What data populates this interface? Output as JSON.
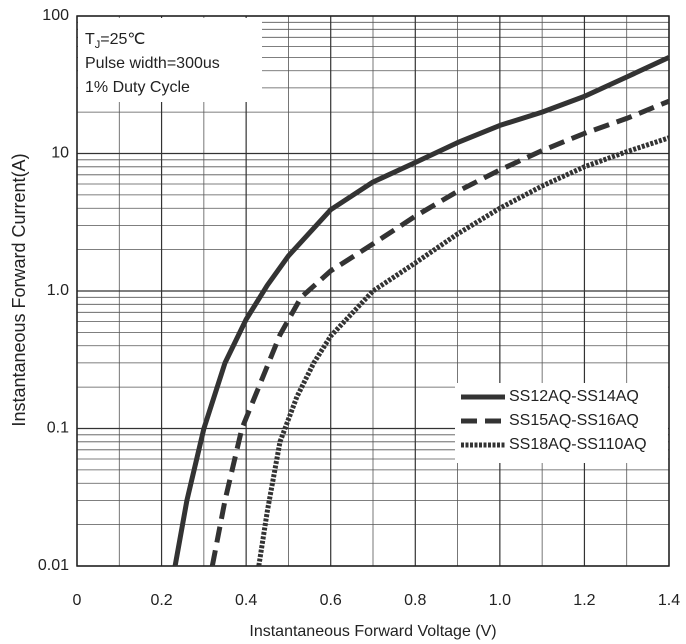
{
  "chart_data": {
    "type": "line",
    "xlabel": "Instantaneous Forward Voltage (V)",
    "ylabel": "Instantaneous Forward Current(A)",
    "xlim": [
      0,
      1.4
    ],
    "ylim": [
      0.01,
      100
    ],
    "log_y": true,
    "grid": true,
    "xticks": [
      0,
      0.2,
      0.4,
      0.6,
      0.8,
      {
        "value": 1,
        "label": "1.0"
      },
      1.2,
      1.4
    ],
    "xminorticks": [
      0.1,
      0.3,
      0.5,
      0.7,
      0.9,
      1.1,
      1.3
    ],
    "yticks": [
      0.01,
      0.1,
      {
        "value": 1,
        "label": "1.0"
      },
      10,
      100
    ],
    "yminorticks": [
      0.02,
      0.03,
      0.04,
      0.05,
      0.06,
      0.07,
      0.08,
      0.09,
      0.2,
      0.3,
      0.4,
      0.5,
      0.6,
      0.7,
      0.8,
      0.9,
      2,
      3,
      4,
      5,
      6,
      7,
      8,
      9,
      20,
      30,
      40,
      50,
      60,
      70,
      80,
      90
    ],
    "annotation": {
      "base": "T",
      "sub": "J",
      "rest": "=25℃",
      "lines": [
        "Pulse width=300us",
        "1% Duty Cycle"
      ]
    },
    "legend": "lower right",
    "series": [
      {
        "name": "SS12AQ-SS14AQ",
        "color": "#333333",
        "dash": "solid",
        "x": [
          0.232,
          0.26,
          0.3,
          0.35,
          0.4,
          0.45,
          0.5,
          0.6,
          0.7,
          0.8,
          0.9,
          1.0,
          1.1,
          1.2,
          1.3,
          1.4
        ],
        "values": [
          0.01,
          0.03,
          0.1,
          0.3,
          0.62,
          1.1,
          1.8,
          3.9,
          6.2,
          8.6,
          12,
          16,
          20,
          26,
          36,
          50
        ]
      },
      {
        "name": "SS15AQ-SS16AQ",
        "color": "#333333",
        "dash": "dashed",
        "x": [
          0.32,
          0.35,
          0.39,
          0.43,
          0.48,
          0.53,
          0.6,
          0.7,
          0.8,
          0.9,
          1.0,
          1.1,
          1.2,
          1.3,
          1.4
        ],
        "values": [
          0.01,
          0.03,
          0.1,
          0.2,
          0.48,
          0.9,
          1.4,
          2.2,
          3.5,
          5.3,
          7.6,
          10.5,
          14,
          18,
          24
        ]
      },
      {
        "name": "SS18AQ-SS110AQ",
        "color": "#333333",
        "dash": "dotted",
        "x": [
          0.43,
          0.45,
          0.48,
          0.52,
          0.56,
          0.6,
          0.7,
          0.8,
          0.9,
          1.0,
          1.1,
          1.2,
          1.3,
          1.4
        ],
        "values": [
          0.01,
          0.025,
          0.08,
          0.17,
          0.3,
          0.47,
          1.0,
          1.6,
          2.6,
          4.0,
          5.8,
          8.0,
          10.3,
          13
        ]
      }
    ]
  }
}
